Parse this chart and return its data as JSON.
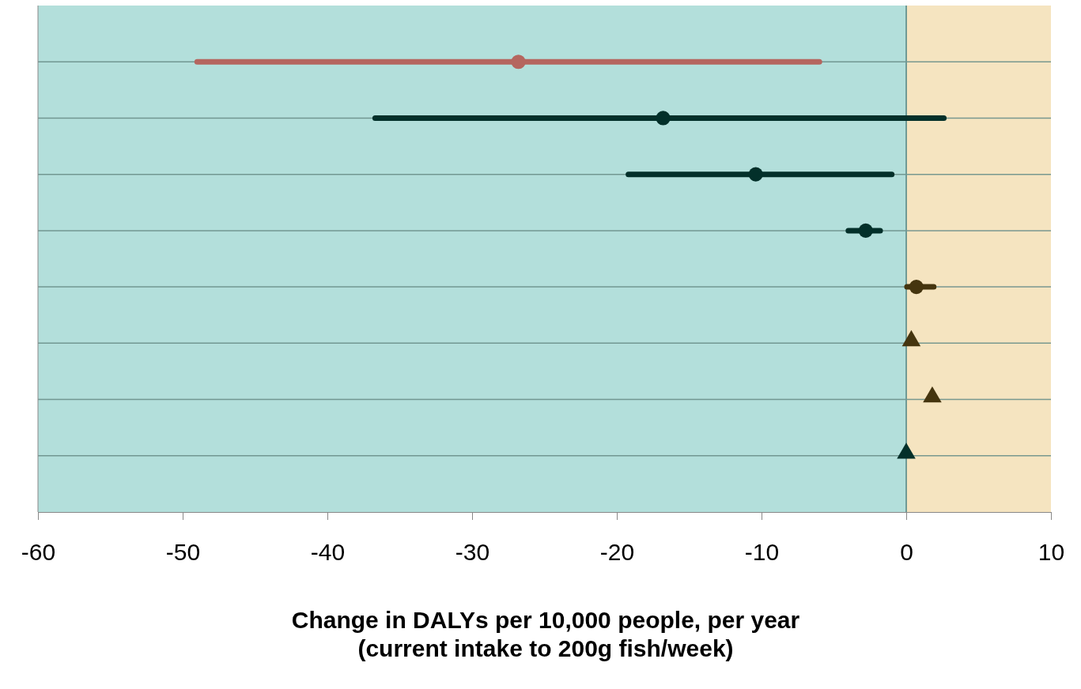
{
  "chart_data": {
    "type": "scatter",
    "orientation": "horizontal",
    "xlabel": "Change in DALYs per 10,000 people, per year\n(current intake to 200g fish/week)",
    "categories": [
      null,
      null,
      null,
      null,
      null,
      null,
      null,
      null
    ],
    "xlim": [
      -60,
      10
    ],
    "xticks": [
      -60,
      -50,
      -40,
      -30,
      -20,
      -10,
      0,
      10
    ],
    "grid": "y",
    "bands": [
      {
        "axis": "x",
        "from": -60,
        "to": 0,
        "color": "#b3dfdb"
      },
      {
        "axis": "x",
        "from": 0,
        "to": 10,
        "color": "#f5e4c0"
      }
    ],
    "ref_lines": [
      {
        "axis": "x",
        "value": 0,
        "color": "#6f9a96"
      }
    ],
    "series": [
      {
        "marker": "circle",
        "values": [
          -26.8,
          -16.8,
          -10.4,
          -2.8,
          0.7,
          null,
          null,
          null
        ],
        "colors": [
          "#b5665f",
          "#03302a",
          "#03302a",
          "#03302a",
          "#45350f",
          null,
          null,
          null
        ],
        "errors": [
          [
            -49,
            -6
          ],
          [
            -36.7,
            2.6
          ],
          [
            -19.2,
            -1
          ],
          [
            -4,
            -1.8
          ],
          [
            0.05,
            1.9
          ],
          null,
          null,
          null
        ]
      },
      {
        "marker": "triangle",
        "values": [
          null,
          null,
          null,
          null,
          null,
          0.35,
          1.8,
          0
        ],
        "colors": [
          null,
          null,
          null,
          null,
          null,
          "#45350f",
          "#45350f",
          "#03302a"
        ]
      }
    ]
  }
}
